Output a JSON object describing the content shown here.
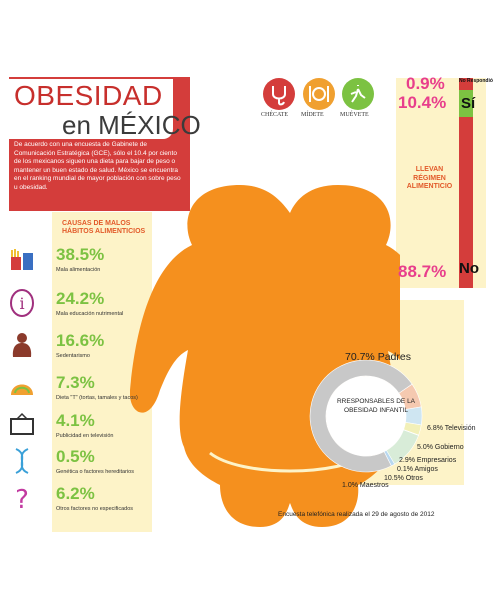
{
  "title": {
    "line1": "OBESIDAD",
    "line2": "en MÉXICO"
  },
  "intro": "De acuerdo con una encuesta de Gabinete de Comunicación Estratégica (GCE), sólo el 10.4 por ciento de los mexicanos siguen una dieta para bajar de peso o mantener un buen estado de salud. México se encuentra en el ranking mundial de mayor población con sobre peso u obesidad.",
  "logos": [
    {
      "label": "CHÉCATE",
      "icon": "stethoscope-icon",
      "color": "#d43d3b"
    },
    {
      "label": "MÍDETE",
      "icon": "plate-cutlery-icon",
      "color": "#f0a030"
    },
    {
      "label": "MUÉVETE",
      "icon": "runner-icon",
      "color": "#7cc242"
    }
  ],
  "causes_title": "CAUSAS DE MALOS HÁBITOS ALIMENTICIOS",
  "chart_data": [
    {
      "type": "bar",
      "title": "CAUSAS DE MALOS HÁBITOS ALIMENTICIOS",
      "categories": [
        "Mala alimentación",
        "Mala educación nutrimental",
        "Sedentarismo",
        "Dieta \"T\" (tortas, tamales y tacos)",
        "Publicidad en televisión",
        "Genética o factores hereditarios",
        "Otros factores no especificados"
      ],
      "labels": [
        "38.5%",
        "24.2%",
        "16.6%",
        "7.3%",
        "4.1%",
        "0.5%",
        "6.2%"
      ],
      "values": [
        38.5,
        24.2,
        16.6,
        7.3,
        4.1,
        0.5,
        6.2
      ],
      "icons": [
        "fast-food-icon",
        "info-icon",
        "sedentary-person-icon",
        "taco-icon",
        "tv-icon",
        "dna-icon",
        "question-mark-icon"
      ],
      "icon_colors": [
        "#d43d3b",
        "#a0307e",
        "#8b3a2b",
        "#f0a030",
        "#333333",
        "#3aa0d8",
        "#c23aa0"
      ]
    },
    {
      "type": "bar",
      "title": "LLEVAN RÉGIMEN ALIMENTICIO",
      "categories": [
        "No Respondió",
        "Sí",
        "No"
      ],
      "labels": [
        "0.9%",
        "10.4%",
        "88.7%"
      ],
      "values": [
        0.9,
        10.4,
        88.7
      ],
      "colors": [
        "#222222",
        "#7cc242",
        "#d43d3b"
      ]
    },
    {
      "type": "pie",
      "title": "RRESPONSABLES DE LA OBESIDAD INFANTIL",
      "categories": [
        "Padres",
        "Televisión",
        "Gobierno",
        "Empresarios",
        "Amigos",
        "Otros",
        "Maestros"
      ],
      "labels": [
        "70.7% Padres",
        "6.8% Televisión",
        "5.0% Gobierno",
        "2.9% Empresarios",
        "0.1% Amigos",
        "10.5% Otros",
        "1.0% Maestros"
      ],
      "values": [
        70.7,
        6.8,
        5.0,
        2.9,
        0.1,
        10.5,
        1.0
      ],
      "colors": [
        "#c8c8c8",
        "#f5c9b0",
        "#cfe6f2",
        "#f2f0b8",
        "#e0e0e0",
        "#d8ecd8",
        "#b8d8f0"
      ]
    }
  ],
  "footnote": "Encuesta telefónica realizada el 29 de agosto de 2012",
  "colors": {
    "red": "#d43d3b",
    "orange": "#f5901e",
    "green": "#7cc242",
    "magenta": "#e83e8c",
    "cream": "#fdf3c8"
  }
}
